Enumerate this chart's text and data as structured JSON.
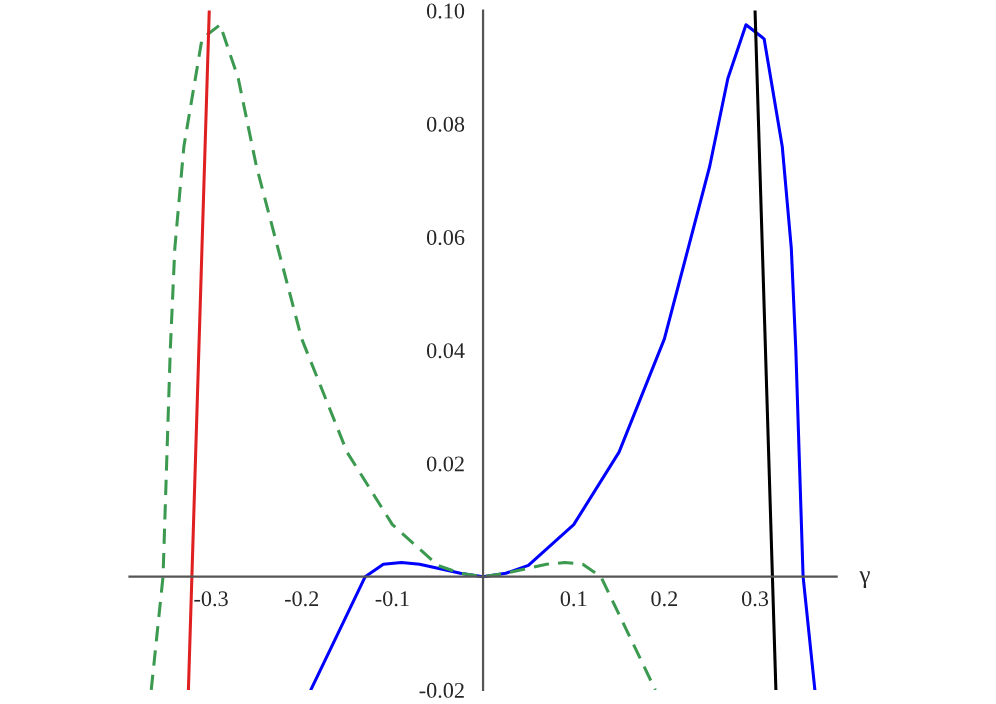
{
  "chart_data": {
    "type": "line",
    "xlabel": "γ",
    "xlim": [
      -0.39,
      0.39
    ],
    "ylim": [
      -0.02,
      0.1
    ],
    "xticks": [
      -0.3,
      -0.2,
      -0.1,
      0.1,
      0.2,
      0.3
    ],
    "yticks": [
      -0.02,
      0.02,
      0.04,
      0.06,
      0.08,
      {
        "value": 0.1,
        "label": "0.10"
      }
    ],
    "grid": false,
    "legend": false,
    "series": [
      {
        "color": "#0000ff",
        "line_style": "solid",
        "x": [
          -0.19,
          -0.16,
          -0.13,
          -0.11,
          -0.09,
          -0.07,
          -0.05,
          -0.025,
          0,
          0.025,
          0.05,
          0.1,
          0.15,
          0.2,
          0.25,
          0.27,
          0.29,
          0.31,
          0.33,
          0.34,
          0.345,
          0.353,
          0.366
        ],
        "values": [
          -0.02,
          -0.01,
          0,
          0.0022,
          0.0025,
          0.0022,
          0.0015,
          0.0006,
          0,
          0.0006,
          0.002,
          0.0092,
          0.022,
          0.042,
          0.0725,
          0.088,
          0.0975,
          0.095,
          0.076,
          0.058,
          0.04,
          0,
          -0.02
        ]
      },
      {
        "color": "#3c9a50",
        "line_style": "dashed",
        "x": [
          -0.366,
          -0.353,
          -0.345,
          -0.34,
          -0.33,
          -0.31,
          -0.29,
          -0.27,
          -0.25,
          -0.2,
          -0.15,
          -0.1,
          -0.05,
          -0.025,
          0,
          0.025,
          0.05,
          0.07,
          0.09,
          0.11,
          0.13,
          0.16,
          0.19
        ],
        "values": [
          -0.02,
          0,
          0.04,
          0.058,
          0.076,
          0.095,
          0.0975,
          0.088,
          0.0725,
          0.042,
          0.022,
          0.0092,
          0.002,
          0.0006,
          0,
          0.0006,
          0.0015,
          0.0022,
          0.0025,
          0.0022,
          0,
          -0.01,
          -0.02
        ]
      },
      {
        "color": "#e02020",
        "line_style": "solid",
        "x": [
          -0.325,
          -0.302
        ],
        "values": [
          -0.02,
          0.1
        ]
      },
      {
        "color": "#000000",
        "line_style": "solid",
        "x": [
          0.3,
          0.323
        ],
        "values": [
          0.1,
          -0.02
        ]
      }
    ]
  }
}
